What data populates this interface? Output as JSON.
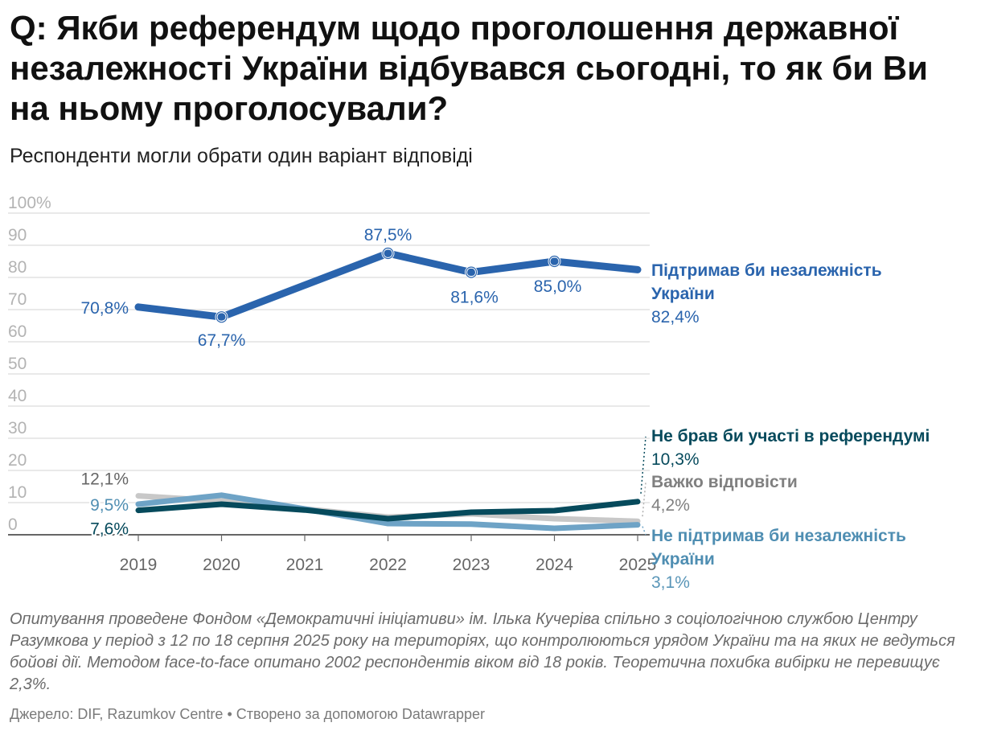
{
  "header": {
    "title": "Q: Якби референдум щодо проголошення державної незалежності України відбувався сьогодні, то як би Ви на ньому проголосували?",
    "subtitle": "Респонденти могли обрати один варіант відповіді"
  },
  "chart_data": {
    "type": "line",
    "x": [
      "2019",
      "2020",
      "2021",
      "2022",
      "2023",
      "2024",
      "2025"
    ],
    "ylim": [
      0,
      100
    ],
    "y_ticks": [
      "0",
      "10",
      "20",
      "30",
      "40",
      "50",
      "60",
      "70",
      "80",
      "90",
      "100%"
    ],
    "grid": true,
    "series": [
      {
        "name": "Важко відповісти",
        "color": "#c8c8c8",
        "values": [
          12.1,
          10.5,
          8.0,
          5.5,
          6.5,
          5.0,
          4.2
        ],
        "label_lines": [
          "Важко відповісти"
        ],
        "end_value": "4,2%",
        "label_color": "#808080",
        "value_color": "#808080",
        "start_label": "12,1%",
        "start_label_color": "#666666"
      },
      {
        "name": "Не підтримав би незалежність України",
        "color": "#6ea3c6",
        "values": [
          9.5,
          12.3,
          8.0,
          3.5,
          3.3,
          2.0,
          3.1
        ],
        "label_lines": [
          "Не підтримав би незалежність",
          "України"
        ],
        "end_value": "3,1%",
        "label_color": "#4f8eb2",
        "value_color": "#5a96b8",
        "start_label": "9,5%",
        "start_label_color": "#4f8eb2"
      },
      {
        "name": "Не брав би участі в референдумі",
        "color": "#064a5c",
        "values": [
          7.6,
          9.5,
          7.7,
          5.0,
          7.0,
          7.5,
          10.3
        ],
        "label_lines": [
          "Не брав би участі в референдумі"
        ],
        "end_value": "10,3%",
        "label_color": "#064a5c",
        "value_color": "#064a5c",
        "start_label": "7,6%",
        "start_label_color": "#064a5c"
      },
      {
        "name": "Підтримав би незалежність України",
        "color": "#2a64ad",
        "values": [
          70.8,
          67.7,
          77.6,
          87.5,
          81.6,
          85.0,
          82.4
        ],
        "label_lines": [
          "Підтримав би незалежність",
          "України"
        ],
        "end_value": "82,4%",
        "label_color": "#2a64ad",
        "value_color": "#2a64ad",
        "point_labels": [
          "70,8%",
          "67,7%",
          "",
          "87,5%",
          "81,6%",
          "85,0%",
          ""
        ]
      }
    ]
  },
  "notes": "Опитування проведене Фондом «Демократичні ініціативи» ім. Ілька Кучеріва спільно з соціологічною службою Центру Разумкова у період з 12 по 18 серпня 2025 року на територіях, що контролюються урядом України та на яких не ведуться бойові дії. Методом face-to-face опитано 2002 респондентів віком від 18 років. Теоретична похибка вибірки не перевищує 2,3%.",
  "footer": "Джерело: DIF, Razumkov Centre • Створено за допомогою Datawrapper"
}
